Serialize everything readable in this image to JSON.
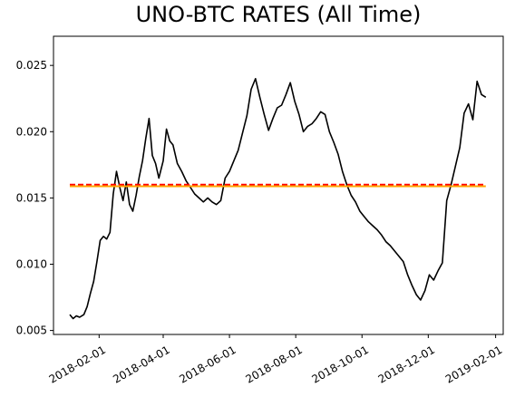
{
  "chart_data": {
    "type": "line",
    "title": "UNO-BTC RATES (All Time)",
    "xlabel": "",
    "ylabel": "",
    "x_ticks": [
      "2018-02-01",
      "2018-04-01",
      "2018-06-01",
      "2018-08-01",
      "2018-10-01",
      "2018-12-01",
      "2019-02-01"
    ],
    "y_ticks": [
      "0.005",
      "0.010",
      "0.015",
      "0.020",
      "0.025"
    ],
    "xlim": [
      "2017-12-21",
      "2019-02-08"
    ],
    "ylim": [
      0.0047,
      0.0272
    ],
    "grid": false,
    "legend": "none",
    "series": [
      {
        "color": "#000000",
        "x": [
          "2018-01-05",
          "2018-01-08",
          "2018-01-11",
          "2018-01-14",
          "2018-01-18",
          "2018-01-21",
          "2018-01-24",
          "2018-01-27",
          "2018-01-30",
          "2018-02-02",
          "2018-02-05",
          "2018-02-08",
          "2018-02-11",
          "2018-02-14",
          "2018-02-17",
          "2018-02-20",
          "2018-02-23",
          "2018-02-26",
          "2018-03-01",
          "2018-03-04",
          "2018-03-07",
          "2018-03-10",
          "2018-03-13",
          "2018-03-16",
          "2018-03-19",
          "2018-03-22",
          "2018-03-25",
          "2018-03-28",
          "2018-04-01",
          "2018-04-04",
          "2018-04-07",
          "2018-04-10",
          "2018-04-14",
          "2018-04-18",
          "2018-04-22",
          "2018-04-26",
          "2018-04-30",
          "2018-05-04",
          "2018-05-08",
          "2018-05-12",
          "2018-05-16",
          "2018-05-20",
          "2018-05-24",
          "2018-05-28",
          "2018-06-01",
          "2018-06-05",
          "2018-06-09",
          "2018-06-13",
          "2018-06-17",
          "2018-06-21",
          "2018-06-25",
          "2018-06-29",
          "2018-07-03",
          "2018-07-07",
          "2018-07-11",
          "2018-07-15",
          "2018-07-19",
          "2018-07-23",
          "2018-07-27",
          "2018-07-31",
          "2018-08-04",
          "2018-08-08",
          "2018-08-12",
          "2018-08-16",
          "2018-08-20",
          "2018-08-24",
          "2018-08-28",
          "2018-09-01",
          "2018-09-05",
          "2018-09-09",
          "2018-09-13",
          "2018-09-17",
          "2018-09-21",
          "2018-09-25",
          "2018-09-29",
          "2018-10-03",
          "2018-10-07",
          "2018-10-11",
          "2018-10-15",
          "2018-10-19",
          "2018-10-23",
          "2018-10-27",
          "2018-10-31",
          "2018-11-04",
          "2018-11-08",
          "2018-11-12",
          "2018-11-16",
          "2018-11-20",
          "2018-11-24",
          "2018-11-28",
          "2018-12-02",
          "2018-12-06",
          "2018-12-10",
          "2018-12-14",
          "2018-12-18",
          "2018-12-22",
          "2018-12-26",
          "2018-12-30",
          "2019-01-03",
          "2019-01-07",
          "2019-01-11",
          "2019-01-15",
          "2019-01-19",
          "2019-01-23"
        ],
        "y": [
          0.0062,
          0.0059,
          0.0061,
          0.006,
          0.0062,
          0.0068,
          0.0078,
          0.0087,
          0.0102,
          0.0118,
          0.0121,
          0.0119,
          0.0124,
          0.0153,
          0.017,
          0.0158,
          0.0148,
          0.0162,
          0.0145,
          0.014,
          0.0152,
          0.0166,
          0.0178,
          0.0195,
          0.021,
          0.0182,
          0.0176,
          0.0165,
          0.0178,
          0.0202,
          0.0193,
          0.019,
          0.0176,
          0.017,
          0.0163,
          0.0158,
          0.0153,
          0.015,
          0.0147,
          0.015,
          0.0147,
          0.0145,
          0.0148,
          0.0165,
          0.017,
          0.0178,
          0.0186,
          0.0199,
          0.0212,
          0.0232,
          0.024,
          0.0226,
          0.0213,
          0.0201,
          0.021,
          0.0218,
          0.022,
          0.0228,
          0.0237,
          0.0223,
          0.0213,
          0.02,
          0.0204,
          0.0206,
          0.021,
          0.0215,
          0.0213,
          0.02,
          0.0192,
          0.0183,
          0.017,
          0.016,
          0.0152,
          0.0147,
          0.014,
          0.0136,
          0.0132,
          0.0129,
          0.0126,
          0.0122,
          0.0117,
          0.0114,
          0.011,
          0.0106,
          0.0102,
          0.0092,
          0.0084,
          0.0077,
          0.0073,
          0.008,
          0.0092,
          0.0088,
          0.0095,
          0.0101,
          0.0148,
          0.016,
          0.0174,
          0.0188,
          0.0214,
          0.0221,
          0.0209,
          0.0238,
          0.0228,
          0.0226
        ]
      },
      {
        "color": "#ff0000",
        "style": "dashed",
        "x": [
          "2018-01-05",
          "2019-01-23"
        ],
        "y": [
          0.016,
          0.016
        ]
      },
      {
        "color": "#ffa500",
        "style": "solid",
        "x": [
          "2018-01-05",
          "2019-01-23"
        ],
        "y": [
          0.01588,
          0.01588
        ]
      }
    ]
  }
}
